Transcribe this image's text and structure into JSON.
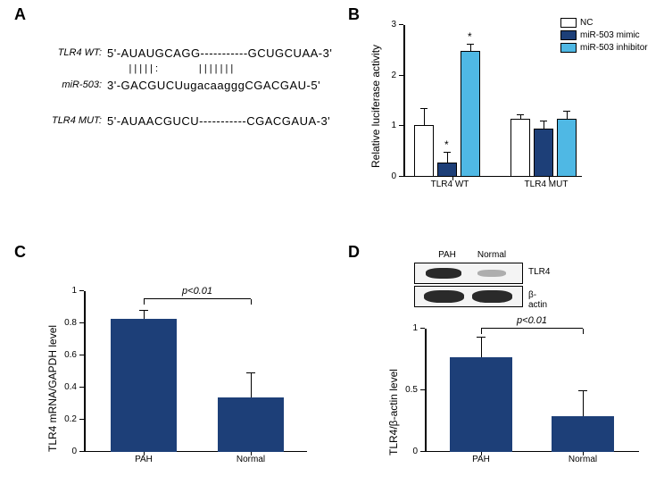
{
  "panels": {
    "A": "A",
    "B": "B",
    "C": "C",
    "D": "D"
  },
  "A": {
    "wt_label": "TLR4 WT:",
    "wt_seq": "5'-AUAUGCAGG-----------GCUGCUAA-3'",
    "pipes": "        | | | | | :               | | | | | | |",
    "mir_label": "miR-503:",
    "mir_seq": "3'-GACGUCUugacaagggCGACGAU-5'",
    "mut_label": "TLR4 MUT:",
    "mut_seq": "5'-AUAACGUCU-----------CGACGAUA-3'"
  },
  "B": {
    "ylabel": "Relative luciferase activity",
    "ymax": 3,
    "yticks": [
      0,
      1,
      2,
      3
    ],
    "groups": [
      "TLR4 WT",
      "TLR4 MUT"
    ],
    "series": [
      "NC",
      "miR-503 mimic",
      "miR-503 inhibitor"
    ],
    "colors": [
      "#ffffff",
      "#1d3f78",
      "#4fb8e4"
    ],
    "values": [
      [
        1.03,
        0.29,
        2.48
      ],
      [
        1.14,
        0.96,
        1.15
      ]
    ],
    "err": [
      [
        0.32,
        0.19,
        0.13
      ],
      [
        0.07,
        0.13,
        0.13
      ]
    ],
    "sig": [
      [
        false,
        true,
        true
      ],
      [
        false,
        false,
        false
      ]
    ]
  },
  "C": {
    "ylabel": "TLR4 mRNA/GAPDH level",
    "ymax": 1.0,
    "yticks": [
      0,
      0.2,
      0.4,
      0.6,
      0.8,
      1.0
    ],
    "cats": [
      "PAH",
      "Normal"
    ],
    "color": "#1d3f78",
    "values": [
      0.83,
      0.34
    ],
    "err": [
      0.05,
      0.15
    ],
    "pval": "p<0.01"
  },
  "D": {
    "ylabel": "TLR4/β-actin level",
    "ymax": 1.0,
    "yticks": [
      0,
      0.5,
      1.0
    ],
    "cats": [
      "PAH",
      "Normal"
    ],
    "color": "#1d3f78",
    "values": [
      0.77,
      0.29
    ],
    "err": [
      0.16,
      0.2
    ],
    "pval": "p<0.01",
    "blot_labels": [
      "PAH",
      "Normal"
    ],
    "band_labels": [
      "TLR4",
      "β-actin"
    ]
  }
}
